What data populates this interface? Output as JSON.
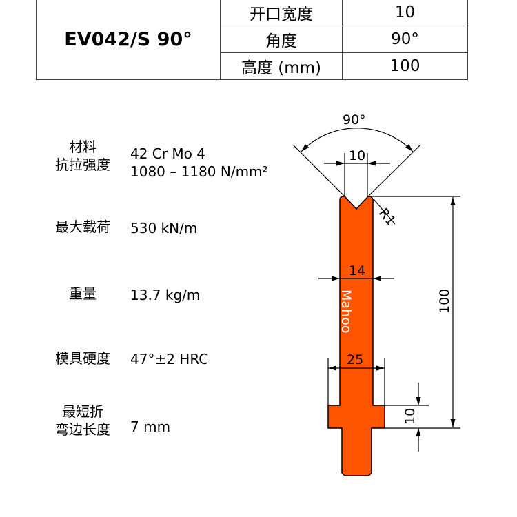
{
  "header": {
    "model": "EV042/S 90°",
    "rows": [
      {
        "label": "开口宽度",
        "value": "10"
      },
      {
        "label": "角度",
        "value": "90°"
      },
      {
        "label": "高度 (mm)",
        "value": "100"
      }
    ]
  },
  "properties": [
    {
      "label": "材料",
      "value": "42 Cr Mo 4"
    },
    {
      "label": "抗拉强度",
      "value": "1080 – 1180 N/mm²"
    },
    {
      "label": "最大载荷",
      "value": "530 kN/m"
    },
    {
      "label": "重量",
      "value": "13.7 kg/m"
    },
    {
      "label": "模具硬度",
      "value": "47°±2 HRC"
    },
    {
      "label": "最短折\n弯边长度",
      "value": "7 mm"
    }
  ],
  "drawing": {
    "angle": "90°",
    "opening": "10",
    "radius": "R1",
    "width": "14",
    "shoulder": "25",
    "height": "100",
    "flange": "10",
    "brand": "Mahoo",
    "fill_color": "#ff5500"
  }
}
